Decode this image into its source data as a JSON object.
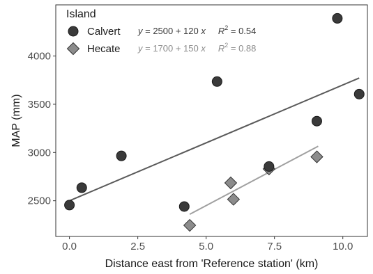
{
  "chart_data": {
    "type": "scatter",
    "xlabel": "Distance east from 'Reference station' (km)",
    "ylabel": "MAP (mm)",
    "xlim": [
      -0.5,
      10.9
    ],
    "ylim": [
      2130,
      4530
    ],
    "x_ticks": [
      0.0,
      2.5,
      5.0,
      7.5,
      10.0
    ],
    "x_tick_labels": [
      "0.0",
      "2.5",
      "5.0",
      "7.5",
      "10.0"
    ],
    "y_ticks": [
      2500,
      3000,
      3500,
      4000
    ],
    "y_tick_labels": [
      "2500",
      "3000",
      "3500",
      "4000"
    ],
    "grid": false,
    "legend": {
      "title": "Island",
      "position": "top-left-inside"
    },
    "series": [
      {
        "name": "Calvert",
        "marker": "circle",
        "marker_color": "#3a3a3a",
        "line_color": "#5a5a5a",
        "equation": {
          "y": "y",
          "eq": "=",
          "a": "2500",
          "plus": "+",
          "b": "120",
          "x": "x",
          "r": "R",
          "sup": "2",
          "req": "=",
          "r2": "0.54"
        },
        "text_color": "#3a3a3a",
        "fit": {
          "x_start": 0.0,
          "x_end": 10.6,
          "intercept": 2500,
          "slope": 120
        },
        "points": [
          {
            "x": 0.0,
            "y": 2455
          },
          {
            "x": 0.45,
            "y": 2635
          },
          {
            "x": 1.9,
            "y": 2965
          },
          {
            "x": 4.2,
            "y": 2440
          },
          {
            "x": 5.4,
            "y": 3735
          },
          {
            "x": 7.3,
            "y": 2855
          },
          {
            "x": 9.05,
            "y": 3325
          },
          {
            "x": 9.8,
            "y": 4390
          },
          {
            "x": 10.6,
            "y": 3605
          }
        ]
      },
      {
        "name": "Hecate",
        "marker": "diamond",
        "marker_color": "#8c8c8c",
        "line_color": "#a0a0a0",
        "equation": {
          "y": "y",
          "eq": "=",
          "a": "1700",
          "plus": "+",
          "b": "150",
          "x": "x",
          "r": "R",
          "sup": "2",
          "req": "=",
          "r2": "0.88"
        },
        "text_color": "#8c8c8c",
        "fit": {
          "x_start": 4.4,
          "x_end": 9.1,
          "intercept": 1700,
          "slope": 150
        },
        "points": [
          {
            "x": 4.4,
            "y": 2245
          },
          {
            "x": 5.9,
            "y": 2685
          },
          {
            "x": 6.0,
            "y": 2515
          },
          {
            "x": 7.3,
            "y": 2830
          },
          {
            "x": 9.05,
            "y": 2955
          }
        ]
      }
    ]
  }
}
